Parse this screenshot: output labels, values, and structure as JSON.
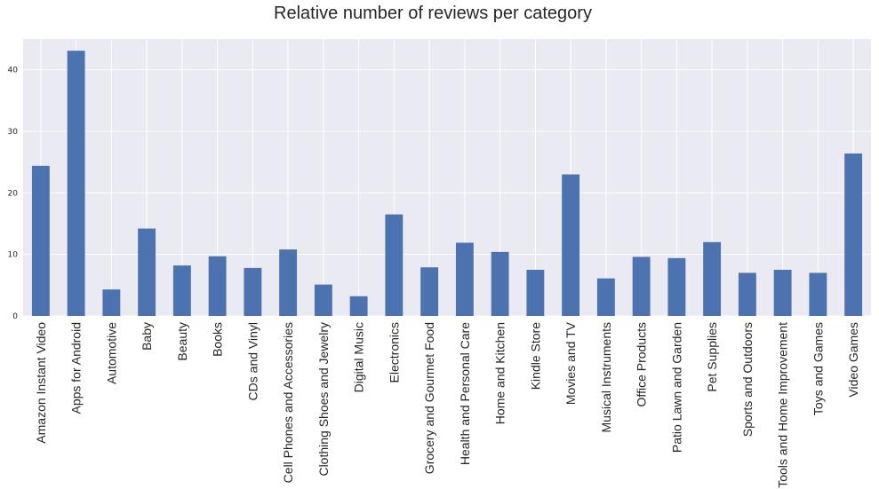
{
  "chart_data": {
    "type": "bar",
    "title": "Relative number of reviews per category",
    "xlabel": "",
    "ylabel": "",
    "ylim": [
      0,
      45
    ],
    "yticks": [
      0,
      10,
      20,
      30,
      40
    ],
    "grid": true,
    "legend": "none",
    "bar_color": "#4c72b0",
    "background_color": "#eaeaf2",
    "grid_color": "#ffffff",
    "categories": [
      "Amazon Instant Video",
      "Apps for Android",
      "Automotive",
      "Baby",
      "Beauty",
      "Books",
      "CDs and Vinyl",
      "Cell Phones and Accessories",
      "Clothing Shoes and Jewelry",
      "Digital Music",
      "Electronics",
      "Grocery and Gourmet Food",
      "Health and Personal Care",
      "Home and Kitchen",
      "Kindle Store",
      "Movies and TV",
      "Musical Instruments",
      "Office Products",
      "Patio Lawn and Garden",
      "Pet Supplies",
      "Sports and Outdoors",
      "Tools and Home Improvement",
      "Toys and Games",
      "Video Games"
    ],
    "values": [
      24.4,
      43.1,
      4.3,
      14.2,
      8.2,
      9.7,
      7.8,
      10.8,
      5.1,
      3.2,
      16.5,
      7.9,
      11.9,
      10.4,
      7.5,
      23.0,
      6.1,
      9.6,
      9.4,
      12.0,
      7.0,
      7.5,
      7.0,
      26.4
    ]
  }
}
